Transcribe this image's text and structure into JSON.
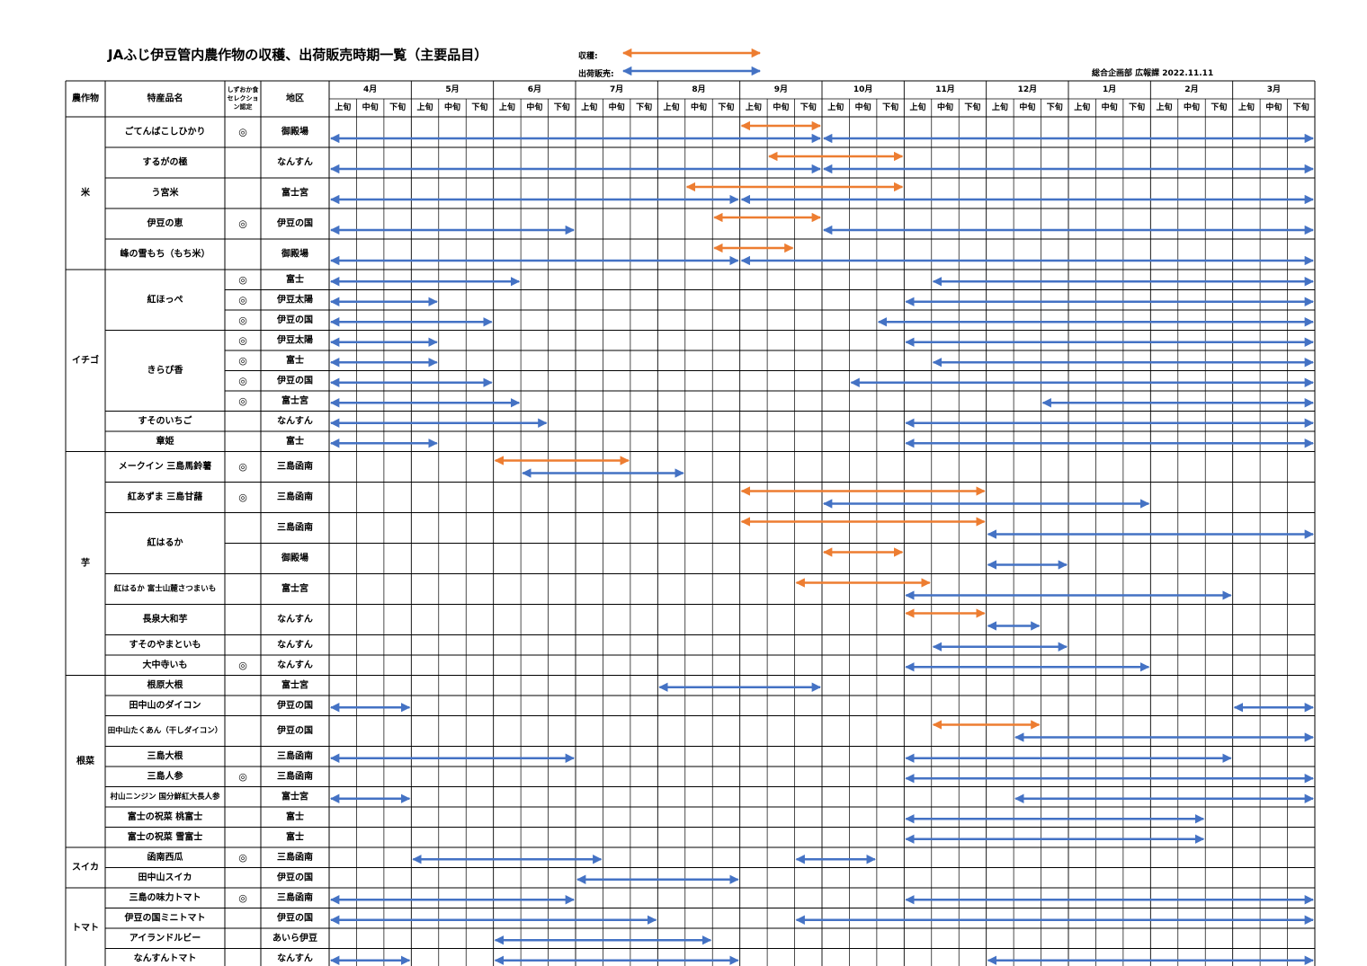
{
  "header": {
    "title": "JAふじ伊豆管内農作物の収穫、出荷販売時期一覧（主要品目）",
    "legend_harvest_label": "収穫:",
    "legend_ship_label": "出荷販売:",
    "department": "総合企画部  広報課  2022.11.11"
  },
  "colors": {
    "harvest": "#ED7D31",
    "ship": "#4472C4",
    "grid": "#000000"
  },
  "columns": {
    "crop": "農作物",
    "product": "特産品名",
    "certification": "しずおか食セレクション認定",
    "certification_lines": [
      "しずおか食",
      "セレクショ",
      "ン認定"
    ],
    "area": "地区"
  },
  "months": [
    "4月",
    "5月",
    "6月",
    "7月",
    "8月",
    "9月",
    "10月",
    "11月",
    "12月",
    "1月",
    "2月",
    "3月"
  ],
  "periods": [
    "上旬",
    "中旬",
    "下旬"
  ],
  "chart_data": {
    "type": "table",
    "time_unit": "旬 (10-day period) from 4月上旬 to 3月下旬",
    "groups": [
      {
        "crop": "米",
        "products": [
          {
            "name": "ごてんばこしひかり",
            "rows": [
              {
                "cert": "◎",
                "area": "御殿場",
                "harvest": [
                  [
                    "9月上旬",
                    "9月下旬"
                  ]
                ],
                "ship": [
                  [
                    "4月上旬",
                    "9月下旬"
                  ],
                  [
                    "10月上旬",
                    "3月下旬"
                  ]
                ]
              }
            ]
          },
          {
            "name": "するがの極",
            "rows": [
              {
                "cert": "",
                "area": "なんすん",
                "harvest": [
                  [
                    "9月中旬",
                    "10月下旬"
                  ]
                ],
                "ship": [
                  [
                    "4月上旬",
                    "9月下旬"
                  ],
                  [
                    "10月上旬",
                    "3月下旬"
                  ]
                ]
              }
            ]
          },
          {
            "name": "う宮米",
            "rows": [
              {
                "cert": "",
                "area": "富士宮",
                "harvest": [
                  [
                    "8月中旬",
                    "10月下旬"
                  ]
                ],
                "ship": [
                  [
                    "4月上旬",
                    "8月下旬"
                  ],
                  [
                    "9月上旬",
                    "3月下旬"
                  ]
                ]
              }
            ]
          },
          {
            "name": "伊豆の恵",
            "rows": [
              {
                "cert": "◎",
                "area": "伊豆の国",
                "harvest": [
                  [
                    "8月下旬",
                    "9月下旬"
                  ]
                ],
                "ship": [
                  [
                    "4月上旬",
                    "6月下旬"
                  ],
                  [
                    "10月上旬",
                    "3月下旬"
                  ]
                ]
              }
            ]
          },
          {
            "name": "峰の雪もち（もち米）",
            "rows": [
              {
                "cert": "",
                "area": "御殿場",
                "harvest": [
                  [
                    "8月下旬",
                    "9月中旬"
                  ]
                ],
                "ship": [
                  [
                    "4月上旬",
                    "8月下旬"
                  ],
                  [
                    "9月上旬",
                    "3月下旬"
                  ]
                ]
              }
            ]
          }
        ]
      },
      {
        "crop": "イチゴ",
        "products": [
          {
            "name": "紅ほっぺ",
            "rows": [
              {
                "cert": "◎",
                "area": "富士",
                "harvest": [],
                "ship": [
                  [
                    "4月上旬",
                    "6月上旬"
                  ],
                  [
                    "11月中旬",
                    "3月下旬"
                  ]
                ]
              },
              {
                "cert": "◎",
                "area": "伊豆太陽",
                "harvest": [],
                "ship": [
                  [
                    "4月上旬",
                    "5月上旬"
                  ],
                  [
                    "11月上旬",
                    "3月下旬"
                  ]
                ]
              },
              {
                "cert": "◎",
                "area": "伊豆の国",
                "harvest": [],
                "ship": [
                  [
                    "4月上旬",
                    "5月下旬"
                  ],
                  [
                    "10月下旬",
                    "3月下旬"
                  ]
                ]
              }
            ]
          },
          {
            "name": "きらぴ香",
            "rows": [
              {
                "cert": "◎",
                "area": "伊豆太陽",
                "harvest": [],
                "ship": [
                  [
                    "4月上旬",
                    "5月上旬"
                  ],
                  [
                    "11月上旬",
                    "3月下旬"
                  ]
                ]
              },
              {
                "cert": "◎",
                "area": "富士",
                "harvest": [],
                "ship": [
                  [
                    "4月上旬",
                    "5月上旬"
                  ],
                  [
                    "11月中旬",
                    "3月下旬"
                  ]
                ]
              },
              {
                "cert": "◎",
                "area": "伊豆の国",
                "harvest": [],
                "ship": [
                  [
                    "4月上旬",
                    "5月下旬"
                  ],
                  [
                    "10月中旬",
                    "3月下旬"
                  ]
                ]
              },
              {
                "cert": "◎",
                "area": "富士宮",
                "harvest": [],
                "ship": [
                  [
                    "4月上旬",
                    "6月上旬"
                  ],
                  [
                    "12月下旬",
                    "3月下旬"
                  ]
                ]
              }
            ]
          },
          {
            "name": "すそのいちご",
            "rows": [
              {
                "cert": "",
                "area": "なんすん",
                "harvest": [],
                "ship": [
                  [
                    "4月上旬",
                    "6月中旬"
                  ],
                  [
                    "11月上旬",
                    "3月下旬"
                  ]
                ]
              }
            ]
          },
          {
            "name": "章姫",
            "rows": [
              {
                "cert": "",
                "area": "富士",
                "harvest": [],
                "ship": [
                  [
                    "4月上旬",
                    "5月上旬"
                  ],
                  [
                    "11月上旬",
                    "3月下旬"
                  ]
                ]
              }
            ]
          }
        ]
      },
      {
        "crop": "芋",
        "products": [
          {
            "name": "メークイン  三島馬鈴薯",
            "rows": [
              {
                "cert": "◎",
                "area": "三島函南",
                "harvest": [
                  [
                    "6月上旬",
                    "7月中旬"
                  ]
                ],
                "ship": [
                  [
                    "6月中旬",
                    "8月上旬"
                  ]
                ]
              }
            ]
          },
          {
            "name": "紅あずま  三島甘藷",
            "rows": [
              {
                "cert": "◎",
                "area": "三島函南",
                "harvest": [
                  [
                    "9月上旬",
                    "11月下旬"
                  ]
                ],
                "ship": [
                  [
                    "10月上旬",
                    "1月下旬"
                  ]
                ]
              }
            ]
          },
          {
            "name": "紅はるか",
            "rows": [
              {
                "cert": "",
                "area": "三島函南",
                "harvest": [
                  [
                    "9月上旬",
                    "11月下旬"
                  ]
                ],
                "ship": [
                  [
                    "12月上旬",
                    "3月下旬"
                  ]
                ]
              },
              {
                "cert": "",
                "area": "御殿場",
                "harvest": [
                  [
                    "10月上旬",
                    "10月下旬"
                  ]
                ],
                "ship": [
                  [
                    "12月上旬",
                    "12月下旬"
                  ]
                ]
              }
            ]
          },
          {
            "name": "紅はるか  富士山麓さつまいも",
            "rows": [
              {
                "cert": "",
                "area": "富士宮",
                "harvest": [
                  [
                    "9月下旬",
                    "11月上旬"
                  ]
                ],
                "ship": [
                  [
                    "11月上旬",
                    "2月下旬"
                  ]
                ]
              }
            ]
          },
          {
            "name": "長泉大和芋",
            "rows": [
              {
                "cert": "",
                "area": "なんすん",
                "harvest": [
                  [
                    "11月上旬",
                    "11月下旬"
                  ]
                ],
                "ship": [
                  [
                    "12月上旬",
                    "12月中旬"
                  ]
                ]
              }
            ]
          },
          {
            "name": "すそのやまといも",
            "rows": [
              {
                "cert": "",
                "area": "なんすん",
                "harvest": [],
                "ship": [
                  [
                    "11月中旬",
                    "12月下旬"
                  ]
                ]
              }
            ]
          },
          {
            "name": "大中寺いも",
            "rows": [
              {
                "cert": "◎",
                "area": "なんすん",
                "harvest": [],
                "ship": [
                  [
                    "11月上旬",
                    "1月下旬"
                  ]
                ]
              }
            ]
          }
        ]
      },
      {
        "crop": "根菜",
        "products": [
          {
            "name": "根原大根",
            "rows": [
              {
                "cert": "",
                "area": "富士宮",
                "harvest": [],
                "ship": [
                  [
                    "8月上旬",
                    "9月下旬"
                  ]
                ]
              }
            ]
          },
          {
            "name": "田中山のダイコン",
            "rows": [
              {
                "cert": "",
                "area": "伊豆の国",
                "harvest": [],
                "ship": [
                  [
                    "4月上旬",
                    "4月下旬"
                  ],
                  [
                    "3月上旬",
                    "3月下旬"
                  ]
                ]
              }
            ]
          },
          {
            "name": "田中山たくあん（干しダイコン）",
            "rows": [
              {
                "cert": "",
                "area": "伊豆の国",
                "harvest": [
                  [
                    "11月中旬",
                    "12月中旬"
                  ]
                ],
                "ship": [
                  [
                    "12月中旬",
                    "3月下旬"
                  ]
                ]
              }
            ]
          },
          {
            "name": "三島大根",
            "rows": [
              {
                "cert": "",
                "area": "三島函南",
                "harvest": [],
                "ship": [
                  [
                    "4月上旬",
                    "6月下旬"
                  ],
                  [
                    "11月上旬",
                    "2月下旬"
                  ]
                ]
              }
            ]
          },
          {
            "name": "三島人参",
            "rows": [
              {
                "cert": "◎",
                "area": "三島函南",
                "harvest": [],
                "ship": [
                  [
                    "11月上旬",
                    "3月下旬"
                  ]
                ]
              }
            ]
          },
          {
            "name": "村山ニンジン  国分鮮紅大長人参",
            "rows": [
              {
                "cert": "",
                "area": "富士宮",
                "harvest": [],
                "ship": [
                  [
                    "4月上旬",
                    "4月下旬"
                  ],
                  [
                    "12月中旬",
                    "3月下旬"
                  ]
                ]
              }
            ]
          },
          {
            "name": "富士の祝菜  桃富士",
            "rows": [
              {
                "cert": "",
                "area": "富士",
                "harvest": [],
                "ship": [
                  [
                    "11月上旬",
                    "2月中旬"
                  ]
                ]
              }
            ]
          },
          {
            "name": "富士の祝菜  雪富士",
            "rows": [
              {
                "cert": "",
                "area": "富士",
                "harvest": [],
                "ship": [
                  [
                    "11月上旬",
                    "2月中旬"
                  ]
                ]
              }
            ]
          }
        ]
      },
      {
        "crop": "スイカ",
        "products": [
          {
            "name": "函南西瓜",
            "rows": [
              {
                "cert": "◎",
                "area": "三島函南",
                "harvest": [],
                "ship": [
                  [
                    "5月上旬",
                    "7月上旬"
                  ],
                  [
                    "9月下旬",
                    "10月中旬"
                  ]
                ]
              }
            ]
          },
          {
            "name": "田中山スイカ",
            "rows": [
              {
                "cert": "",
                "area": "伊豆の国",
                "harvest": [],
                "ship": [
                  [
                    "7月上旬",
                    "8月下旬"
                  ]
                ]
              }
            ]
          }
        ]
      },
      {
        "crop": "トマト",
        "products": [
          {
            "name": "三島の味力トマト",
            "rows": [
              {
                "cert": "◎",
                "area": "三島函南",
                "harvest": [],
                "ship": [
                  [
                    "4月上旬",
                    "6月下旬"
                  ],
                  [
                    "11月上旬",
                    "3月下旬"
                  ]
                ]
              }
            ]
          },
          {
            "name": "伊豆の国ミニトマト",
            "rows": [
              {
                "cert": "",
                "area": "伊豆の国",
                "harvest": [],
                "ship": [
                  [
                    "4月上旬",
                    "7月下旬"
                  ],
                  [
                    "9月下旬",
                    "3月下旬"
                  ]
                ]
              }
            ]
          },
          {
            "name": "アイランドルビー",
            "rows": [
              {
                "cert": "",
                "area": "あいら伊豆",
                "harvest": [],
                "ship": [
                  [
                    "6月上旬",
                    "8月中旬"
                  ]
                ]
              }
            ]
          },
          {
            "name": "なんすんトマト",
            "rows": [
              {
                "cert": "",
                "area": "なんすん",
                "harvest": [],
                "ship": [
                  [
                    "4月上旬",
                    "4月下旬"
                  ],
                  [
                    "6月上旬",
                    "8月下旬"
                  ],
                  [
                    "12月上旬",
                    "3月下旬"
                  ]
                ]
              }
            ]
          }
        ]
      }
    ]
  }
}
